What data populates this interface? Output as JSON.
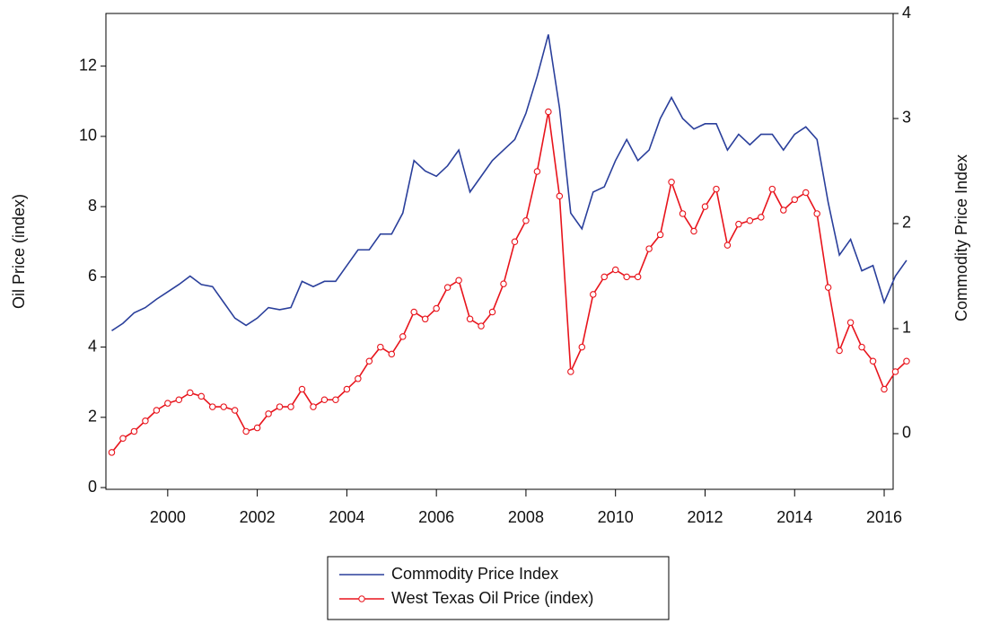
{
  "chart_data": {
    "type": "line",
    "ylabel": "Oil Price (index)",
    "y2label": "Commodity Price Index",
    "x": [
      1998.75,
      1999.0,
      1999.25,
      1999.5,
      1999.75,
      2000.0,
      2000.25,
      2000.5,
      2000.75,
      2001.0,
      2001.25,
      2001.5,
      2001.75,
      2002.0,
      2002.25,
      2002.5,
      2002.75,
      2003.0,
      2003.25,
      2003.5,
      2003.75,
      2004.0,
      2004.25,
      2004.5,
      2004.75,
      2005.0,
      2005.25,
      2005.5,
      2005.75,
      2006.0,
      2006.25,
      2006.5,
      2006.75,
      2007.0,
      2007.25,
      2007.5,
      2007.75,
      2008.0,
      2008.25,
      2008.5,
      2008.75,
      2009.0,
      2009.25,
      2009.5,
      2009.75,
      2010.0,
      2010.25,
      2010.5,
      2010.75,
      2011.0,
      2011.25,
      2011.5,
      2011.75,
      2012.0,
      2012.25,
      2012.5,
      2012.75,
      2013.0,
      2013.25,
      2013.5,
      2013.75,
      2014.0,
      2014.25,
      2014.5,
      2014.75,
      2015.0,
      2015.25,
      2015.5,
      2015.75,
      2016.0,
      2016.25,
      2016.5
    ],
    "series": [
      {
        "name": "Commodity Price Index",
        "color": "#2a3f9b",
        "axis": "y2",
        "marker": false,
        "values": [
          0.98,
          1.05,
          1.15,
          1.2,
          1.28,
          1.35,
          1.42,
          1.5,
          1.42,
          1.4,
          1.25,
          1.1,
          1.03,
          1.1,
          1.2,
          1.18,
          1.2,
          1.45,
          1.4,
          1.45,
          1.45,
          1.6,
          1.75,
          1.75,
          1.9,
          1.9,
          2.1,
          2.6,
          2.5,
          2.45,
          2.55,
          2.7,
          2.3,
          2.45,
          2.6,
          2.7,
          2.8,
          3.05,
          3.4,
          3.8,
          3.1,
          2.1,
          1.95,
          2.3,
          2.35,
          2.6,
          2.8,
          2.6,
          2.7,
          3.0,
          3.2,
          3.0,
          2.9,
          2.95,
          2.95,
          2.7,
          2.85,
          2.75,
          2.85,
          2.85,
          2.7,
          2.85,
          2.92,
          2.8,
          2.2,
          1.7,
          1.85,
          1.55,
          1.6,
          1.25,
          1.5,
          1.65
        ]
      },
      {
        "name": "West Texas Oil Price (index)",
        "color": "#e8141c",
        "axis": "y",
        "marker": true,
        "values": [
          1.0,
          1.4,
          1.6,
          1.9,
          2.2,
          2.4,
          2.5,
          2.7,
          2.6,
          2.3,
          2.3,
          2.2,
          1.6,
          1.7,
          2.1,
          2.3,
          2.3,
          2.8,
          2.3,
          2.5,
          2.5,
          2.8,
          3.1,
          3.6,
          4.0,
          3.8,
          4.3,
          5.0,
          4.8,
          5.1,
          5.7,
          5.9,
          4.8,
          4.6,
          5.0,
          5.8,
          7.0,
          7.6,
          9.0,
          10.7,
          8.3,
          3.3,
          4.0,
          5.5,
          6.0,
          6.2,
          6.0,
          6.0,
          6.8,
          7.2,
          8.7,
          7.8,
          7.3,
          8.0,
          8.5,
          6.9,
          7.5,
          7.6,
          7.7,
          8.5,
          7.9,
          8.2,
          8.4,
          7.8,
          5.7,
          3.9,
          4.7,
          4.0,
          3.6,
          2.8,
          3.3,
          3.6
        ]
      }
    ],
    "xlim": [
      1998.62,
      2016.2
    ],
    "xticks": [
      2000,
      2002,
      2004,
      2006,
      2008,
      2010,
      2012,
      2014,
      2016
    ],
    "ylim": [
      -0.05,
      13.5
    ],
    "yticks": [
      0,
      2,
      4,
      6,
      8,
      10,
      12
    ],
    "y2lim": [
      -0.53,
      4
    ],
    "y2ticks": [
      0,
      1,
      2,
      3,
      4
    ],
    "legend": "bottom"
  }
}
